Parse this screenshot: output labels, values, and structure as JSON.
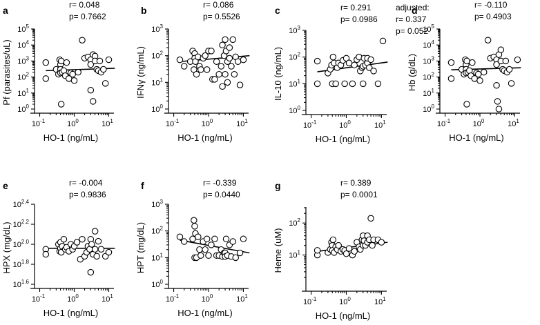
{
  "chart_data": [
    {
      "panel": "a",
      "type": "scatter",
      "x_scale": "log10",
      "y_scale": "log10",
      "xlabel": "HO-1 (ng/mL)",
      "ylabel": "Pf (parasites/uL)",
      "xlim": [
        0.1,
        10
      ],
      "ylim": [
        1,
        100000
      ],
      "xticks": [
        "10^-1",
        "10^0",
        "10^1"
      ],
      "yticks": [
        "10^0",
        "10^1",
        "10^2",
        "10^3",
        "10^4",
        "10^5"
      ],
      "stats": [
        "r= 0.048",
        "p= 0.7662"
      ],
      "fit": [
        [
          0.15,
          250
        ],
        [
          15,
          350
        ]
      ],
      "points": [
        [
          0.15,
          800
        ],
        [
          0.15,
          80
        ],
        [
          0.3,
          300
        ],
        [
          0.35,
          150
        ],
        [
          0.38,
          1200
        ],
        [
          0.4,
          600
        ],
        [
          0.4,
          300
        ],
        [
          0.4,
          180
        ],
        [
          0.42,
          1000
        ],
        [
          0.42,
          2
        ],
        [
          0.45,
          200
        ],
        [
          0.5,
          250
        ],
        [
          0.55,
          120
        ],
        [
          0.6,
          800
        ],
        [
          0.7,
          80
        ],
        [
          0.8,
          180
        ],
        [
          0.9,
          150
        ],
        [
          1.0,
          60
        ],
        [
          1.3,
          200
        ],
        [
          1.7,
          20000
        ],
        [
          2.0,
          1500
        ],
        [
          2.5,
          1800
        ],
        [
          3.0,
          15
        ],
        [
          3.0,
          1200
        ],
        [
          3.0,
          600
        ],
        [
          3.5,
          2500
        ],
        [
          3.5,
          3
        ],
        [
          4.0,
          2000
        ],
        [
          4.0,
          1000
        ],
        [
          4.5,
          300
        ],
        [
          5.0,
          250
        ],
        [
          5.5,
          1000
        ],
        [
          6.0,
          200
        ],
        [
          7.0,
          300
        ],
        [
          8.0,
          40
        ],
        [
          10.0,
          1200
        ]
      ]
    },
    {
      "panel": "b",
      "type": "scatter",
      "x_scale": "log10",
      "y_scale": "log10",
      "xlabel": "HO-1 (ng/mL)",
      "ylabel": "IFNγ (ng/mL)",
      "xlim": [
        0.1,
        10
      ],
      "ylim": [
        1,
        1000
      ],
      "xticks": [
        "10^-1",
        "10^0",
        "10^1"
      ],
      "yticks": [
        "10^0",
        "10^1",
        "10^2",
        "10^3"
      ],
      "stats": [
        "r= 0.086",
        "p= 0.5526"
      ],
      "fit": [
        [
          0.15,
          60
        ],
        [
          15,
          100
        ]
      ],
      "points": [
        [
          0.15,
          70
        ],
        [
          0.2,
          40
        ],
        [
          0.3,
          60
        ],
        [
          0.35,
          150
        ],
        [
          0.38,
          30
        ],
        [
          0.4,
          120
        ],
        [
          0.4,
          80
        ],
        [
          0.42,
          60
        ],
        [
          0.45,
          20
        ],
        [
          0.5,
          90
        ],
        [
          0.55,
          40
        ],
        [
          0.6,
          30
        ],
        [
          0.7,
          80
        ],
        [
          0.8,
          100
        ],
        [
          0.9,
          30
        ],
        [
          1.0,
          150
        ],
        [
          1.2,
          150
        ],
        [
          1.3,
          13
        ],
        [
          1.5,
          13
        ],
        [
          1.7,
          60
        ],
        [
          2.0,
          20
        ],
        [
          2.3,
          40
        ],
        [
          2.5,
          250
        ],
        [
          2.5,
          7
        ],
        [
          2.8,
          100
        ],
        [
          3.0,
          400
        ],
        [
          3.0,
          20
        ],
        [
          3.2,
          150
        ],
        [
          3.5,
          60
        ],
        [
          3.5,
          10
        ],
        [
          4.0,
          200
        ],
        [
          4.0,
          80
        ],
        [
          4.5,
          40
        ],
        [
          5.0,
          400
        ],
        [
          5.5,
          20
        ],
        [
          6.0,
          90
        ],
        [
          7.0,
          60
        ],
        [
          8.0,
          8
        ],
        [
          10.0,
          70
        ]
      ]
    },
    {
      "panel": "c",
      "type": "scatter",
      "x_scale": "log10",
      "y_scale": "log10",
      "xlabel": "HO-1 (ng/mL)",
      "ylabel": "IL-10 (ng/mL)",
      "xlim": [
        0.1,
        10
      ],
      "ylim": [
        1,
        1000
      ],
      "xticks": [
        "10^-1",
        "10^0",
        "10^1"
      ],
      "yticks": [
        "10^0",
        "10^1",
        "10^2",
        "10^3"
      ],
      "stats": [
        "r= 0.291",
        "p= 0.0986"
      ],
      "adjusted": [
        "adjusted:",
        "r= 0.337",
        "p= 0.052"
      ],
      "fit": [
        [
          0.15,
          28
        ],
        [
          15,
          65
        ]
      ],
      "points": [
        [
          0.15,
          10
        ],
        [
          0.15,
          70
        ],
        [
          0.3,
          25
        ],
        [
          0.35,
          35
        ],
        [
          0.38,
          50
        ],
        [
          0.4,
          10
        ],
        [
          0.42,
          100
        ],
        [
          0.45,
          60
        ],
        [
          0.5,
          10
        ],
        [
          0.55,
          40
        ],
        [
          0.6,
          60
        ],
        [
          0.7,
          50
        ],
        [
          0.8,
          75
        ],
        [
          0.9,
          10
        ],
        [
          1.0,
          90
        ],
        [
          1.2,
          60
        ],
        [
          1.5,
          10
        ],
        [
          1.7,
          50
        ],
        [
          2.0,
          80
        ],
        [
          2.3,
          100
        ],
        [
          2.5,
          30
        ],
        [
          2.8,
          40
        ],
        [
          3.0,
          45
        ],
        [
          3.0,
          10
        ],
        [
          3.2,
          90
        ],
        [
          3.5,
          50
        ],
        [
          4.0,
          60
        ],
        [
          4.0,
          90
        ],
        [
          4.5,
          40
        ],
        [
          5.0,
          80
        ],
        [
          6.0,
          30
        ],
        [
          8.0,
          10
        ],
        [
          11.0,
          400
        ]
      ]
    },
    {
      "panel": "d",
      "type": "scatter",
      "x_scale": "log10",
      "y_scale": "log10",
      "xlabel": "HO-1 (ng/mL)",
      "ylabel": "Hb (g/dL)",
      "xlim": [
        0.1,
        10
      ],
      "ylim": [
        1,
        100000
      ],
      "xticks": [
        "10^-1",
        "10^0",
        "10^1"
      ],
      "yticks": [
        "10^0",
        "10^1",
        "10^2",
        "10^3",
        "10^4",
        "10^5"
      ],
      "stats": [
        "r= -0.110",
        "p= 0.4903"
      ],
      "fit": [
        [
          0.15,
          280
        ],
        [
          15,
          380
        ]
      ],
      "points": [
        [
          0.15,
          800
        ],
        [
          0.15,
          80
        ],
        [
          0.3,
          300
        ],
        [
          0.35,
          150
        ],
        [
          0.38,
          1200
        ],
        [
          0.4,
          600
        ],
        [
          0.4,
          300
        ],
        [
          0.4,
          180
        ],
        [
          0.42,
          1000
        ],
        [
          0.42,
          2
        ],
        [
          0.45,
          200
        ],
        [
          0.5,
          250
        ],
        [
          0.55,
          120
        ],
        [
          0.6,
          800
        ],
        [
          0.7,
          80
        ],
        [
          0.8,
          180
        ],
        [
          0.9,
          150
        ],
        [
          1.0,
          60
        ],
        [
          1.3,
          200
        ],
        [
          1.7,
          20000
        ],
        [
          2.0,
          1500
        ],
        [
          2.5,
          1800
        ],
        [
          3.0,
          30
        ],
        [
          3.0,
          1200
        ],
        [
          3.0,
          600
        ],
        [
          3.2,
          3
        ],
        [
          3.5,
          2500
        ],
        [
          3.5,
          1
        ],
        [
          4.0,
          5000
        ],
        [
          4.0,
          1000
        ],
        [
          4.5,
          300
        ],
        [
          5.0,
          250
        ],
        [
          5.5,
          1000
        ],
        [
          6.0,
          200
        ],
        [
          7.0,
          300
        ],
        [
          8.0,
          40
        ],
        [
          12.0,
          1200
        ]
      ]
    },
    {
      "panel": "e",
      "type": "scatter",
      "x_scale": "log10",
      "y_scale": "log10",
      "xlabel": "HO-1 (ng/mL)",
      "ylabel": "HPX (mg/dL)",
      "xlim": [
        0.1,
        10
      ],
      "ylim": [
        1.6,
        2.4
      ],
      "xticks": [
        "10^-1",
        "10^0",
        "10^1"
      ],
      "yticks": [
        "10^1.6",
        "10^1.8",
        "10^2.0",
        "10^2.2",
        "10^2.4"
      ],
      "stats": [
        "r= -0.004",
        "p= 0.9836"
      ],
      "fit": [
        [
          0.15,
          1.96
        ],
        [
          15,
          1.96
        ]
      ],
      "points": [
        [
          0.15,
          1.95
        ],
        [
          0.15,
          1.9
        ],
        [
          0.35,
          2.0
        ],
        [
          0.38,
          1.93
        ],
        [
          0.4,
          2.02
        ],
        [
          0.4,
          1.96
        ],
        [
          0.42,
          1.92
        ],
        [
          0.45,
          1.98
        ],
        [
          0.5,
          2.05
        ],
        [
          0.55,
          1.95
        ],
        [
          0.6,
          1.97
        ],
        [
          0.7,
          1.93
        ],
        [
          0.8,
          2.0
        ],
        [
          0.9,
          1.95
        ],
        [
          1.0,
          1.98
        ],
        [
          1.2,
          2.02
        ],
        [
          1.5,
          1.85
        ],
        [
          1.7,
          2.05
        ],
        [
          2.0,
          1.88
        ],
        [
          2.3,
          1.92
        ],
        [
          2.5,
          1.98
        ],
        [
          2.8,
          1.95
        ],
        [
          3.0,
          2.05
        ],
        [
          3.0,
          1.72
        ],
        [
          3.2,
          2.0
        ],
        [
          3.5,
          1.9
        ],
        [
          4.0,
          2.13
        ],
        [
          4.0,
          1.95
        ],
        [
          4.5,
          1.88
        ],
        [
          5.0,
          2.03
        ],
        [
          6.0,
          1.95
        ],
        [
          8.0,
          1.88
        ],
        [
          10.0,
          1.92
        ]
      ]
    },
    {
      "panel": "f",
      "type": "scatter",
      "x_scale": "log10",
      "y_scale": "log10",
      "xlabel": "HO-1 (ng/mL)",
      "ylabel": "HPT (mg/dL)",
      "xlim": [
        0.1,
        10
      ],
      "ylim": [
        1,
        1000
      ],
      "xticks": [
        "10^-1",
        "10^0",
        "10^1"
      ],
      "yticks": [
        "10^0",
        "10^1",
        "10^2",
        "10^3"
      ],
      "stats": [
        "r= -0.339",
        "p= 0.0440"
      ],
      "fit": [
        [
          0.15,
          45
        ],
        [
          15,
          15
        ]
      ],
      "points": [
        [
          0.15,
          60
        ],
        [
          0.2,
          40
        ],
        [
          0.35,
          50
        ],
        [
          0.38,
          250
        ],
        [
          0.4,
          150
        ],
        [
          0.4,
          10
        ],
        [
          0.42,
          80
        ],
        [
          0.45,
          10
        ],
        [
          0.5,
          60
        ],
        [
          0.55,
          20
        ],
        [
          0.6,
          12
        ],
        [
          0.7,
          40
        ],
        [
          0.8,
          20
        ],
        [
          0.9,
          50
        ],
        [
          1.0,
          12
        ],
        [
          1.2,
          30
        ],
        [
          1.5,
          50
        ],
        [
          1.7,
          12
        ],
        [
          2.0,
          12
        ],
        [
          2.3,
          20
        ],
        [
          2.5,
          11
        ],
        [
          2.8,
          15
        ],
        [
          3.0,
          15
        ],
        [
          3.0,
          11
        ],
        [
          3.2,
          50
        ],
        [
          3.5,
          12
        ],
        [
          4.0,
          30
        ],
        [
          4.5,
          11
        ],
        [
          5.0,
          40
        ],
        [
          6.0,
          10
        ],
        [
          8.0,
          15
        ],
        [
          10.0,
          50
        ]
      ]
    },
    {
      "panel": "g",
      "type": "scatter",
      "x_scale": "log10",
      "y_scale": "log10",
      "xlabel": "HO-1 (ng/mL)",
      "ylabel": "Heme (uM)",
      "xlim": [
        0.1,
        10
      ],
      "ylim": [
        1,
        316
      ],
      "xticks": [
        "10^-1",
        "10^0",
        "10^1"
      ],
      "yticks": [
        "10^1",
        "10^2"
      ],
      "stats": [
        "r= 0.389",
        "p= 0.0001"
      ],
      "fit": [
        [
          0.15,
          13
        ],
        [
          15,
          25
        ]
      ],
      "points": [
        [
          0.15,
          10
        ],
        [
          0.15,
          14
        ],
        [
          0.3,
          12
        ],
        [
          0.35,
          15
        ],
        [
          0.38,
          25
        ],
        [
          0.4,
          20
        ],
        [
          0.4,
          14
        ],
        [
          0.42,
          30
        ],
        [
          0.45,
          12
        ],
        [
          0.5,
          18
        ],
        [
          0.55,
          15
        ],
        [
          0.6,
          20
        ],
        [
          0.7,
          13
        ],
        [
          0.8,
          15
        ],
        [
          0.9,
          14
        ],
        [
          1.0,
          11
        ],
        [
          1.2,
          16
        ],
        [
          1.5,
          10
        ],
        [
          1.7,
          13
        ],
        [
          2.0,
          25
        ],
        [
          2.3,
          18
        ],
        [
          2.5,
          15
        ],
        [
          2.8,
          30
        ],
        [
          3.0,
          40
        ],
        [
          3.0,
          20
        ],
        [
          3.2,
          28
        ],
        [
          3.5,
          20
        ],
        [
          4.0,
          40
        ],
        [
          4.0,
          25
        ],
        [
          4.5,
          30
        ],
        [
          5.0,
          140
        ],
        [
          5.5,
          20
        ],
        [
          6.0,
          30
        ],
        [
          8.0,
          30
        ],
        [
          10.0,
          25
        ]
      ]
    }
  ]
}
